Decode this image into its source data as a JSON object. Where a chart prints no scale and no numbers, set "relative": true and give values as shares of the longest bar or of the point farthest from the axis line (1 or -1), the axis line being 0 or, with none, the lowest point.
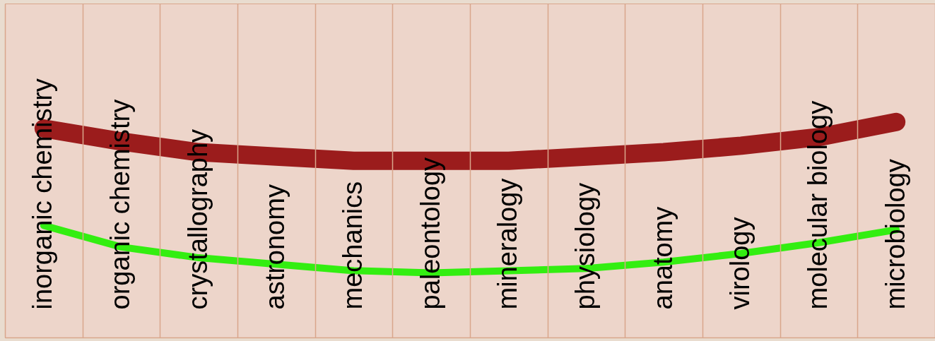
{
  "chart_data": {
    "type": "line",
    "relative": true,
    "grid": "x",
    "categories": [
      "inorganic chemistry",
      "organic chemistry",
      "crystallography",
      "astronomy",
      "mechanics",
      "paleontology",
      "mineralogy",
      "physiology",
      "anatomy",
      "virology",
      "molecular biology",
      "microbiology"
    ],
    "series": [
      {
        "color": "#9b1c1c",
        "values": [
          0.97,
          0.91,
          0.86,
          0.84,
          0.82,
          0.82,
          0.82,
          0.84,
          0.86,
          0.89,
          0.93,
          1.0
        ]
      },
      {
        "color": "#33ee11",
        "values": [
          0.52,
          0.42,
          0.37,
          0.34,
          0.31,
          0.3,
          0.31,
          0.32,
          0.35,
          0.39,
          0.44,
          0.5
        ]
      }
    ]
  }
}
